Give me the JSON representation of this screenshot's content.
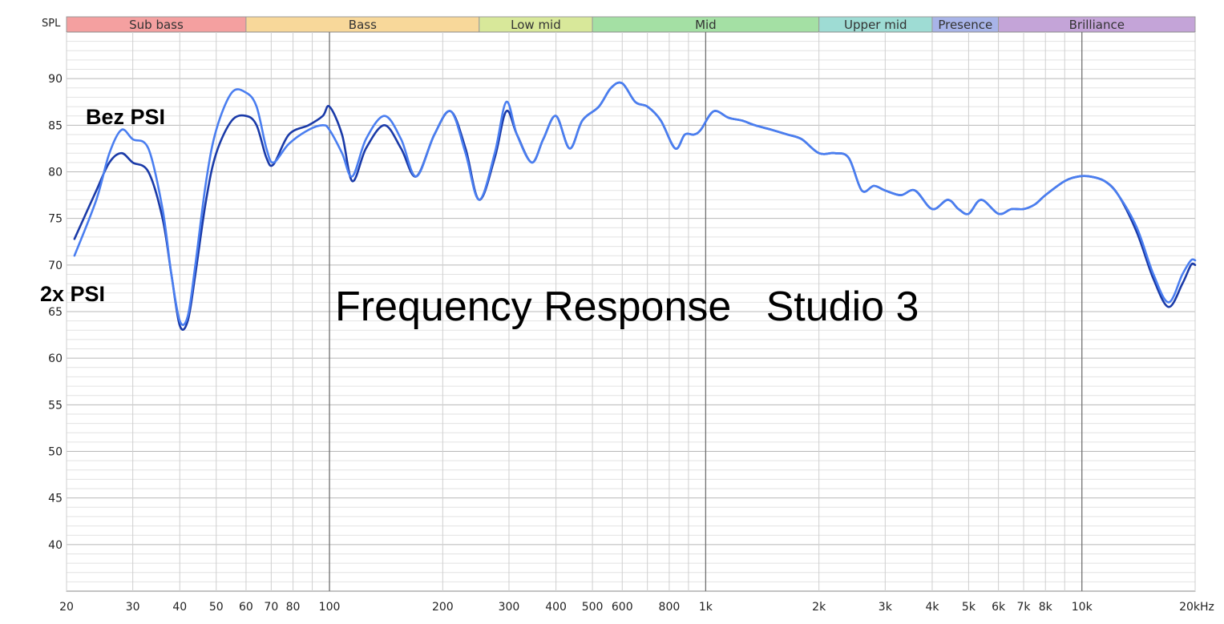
{
  "chart_data": {
    "type": "line",
    "title": "Frequency Response   Studio 3",
    "ylabel": "SPL",
    "xlabel": "",
    "x_scale": "log",
    "xlim": [
      20,
      20000
    ],
    "ylim": [
      35,
      95
    ],
    "grid": true,
    "y_ticks": [
      90,
      85,
      80,
      75,
      70,
      65,
      60,
      55,
      50,
      45,
      40
    ],
    "x_ticks": [
      {
        "value": 20,
        "label": "20"
      },
      {
        "value": 30,
        "label": "30"
      },
      {
        "value": 40,
        "label": "40"
      },
      {
        "value": 50,
        "label": "50"
      },
      {
        "value": 60,
        "label": "60"
      },
      {
        "value": 70,
        "label": "70"
      },
      {
        "value": 80,
        "label": "80"
      },
      {
        "value": 100,
        "label": "100"
      },
      {
        "value": 200,
        "label": "200"
      },
      {
        "value": 300,
        "label": "300"
      },
      {
        "value": 400,
        "label": "400"
      },
      {
        "value": 500,
        "label": "500"
      },
      {
        "value": 600,
        "label": "600"
      },
      {
        "value": 800,
        "label": "800"
      },
      {
        "value": 1000,
        "label": "1k"
      },
      {
        "value": 2000,
        "label": "2k"
      },
      {
        "value": 3000,
        "label": "3k"
      },
      {
        "value": 4000,
        "label": "4k"
      },
      {
        "value": 5000,
        "label": "5k"
      },
      {
        "value": 6000,
        "label": "6k"
      },
      {
        "value": 7000,
        "label": "7k"
      },
      {
        "value": 8000,
        "label": "8k"
      },
      {
        "value": 10000,
        "label": "10k"
      },
      {
        "value": 20000,
        "label": "20kHz"
      }
    ],
    "bands": [
      {
        "name": "Sub bass",
        "from": 20,
        "to": 60,
        "color": "#f4a0a0"
      },
      {
        "name": "Bass",
        "from": 60,
        "to": 250,
        "color": "#f8d89a"
      },
      {
        "name": "Low mid",
        "from": 250,
        "to": 500,
        "color": "#d8e89a"
      },
      {
        "name": "Mid",
        "from": 500,
        "to": 2000,
        "color": "#a4e0a4"
      },
      {
        "name": "Upper mid",
        "from": 2000,
        "to": 4000,
        "color": "#9edcd4"
      },
      {
        "name": "Presence",
        "from": 4000,
        "to": 6000,
        "color": "#a8b4e8"
      },
      {
        "name": "Brilliance",
        "from": 6000,
        "to": 20000,
        "color": "#c4a4d8"
      }
    ],
    "series": [
      {
        "name": "Bez PSI",
        "color": "#4a7ef0",
        "points": [
          [
            21,
            71
          ],
          [
            24,
            77
          ],
          [
            26,
            82
          ],
          [
            28,
            84.5
          ],
          [
            30,
            83.5
          ],
          [
            33,
            82.5
          ],
          [
            36,
            76
          ],
          [
            38,
            69
          ],
          [
            40,
            64
          ],
          [
            42,
            64.5
          ],
          [
            44,
            70
          ],
          [
            47,
            79
          ],
          [
            50,
            84.5
          ],
          [
            55,
            88.5
          ],
          [
            60,
            88.5
          ],
          [
            64,
            87
          ],
          [
            68,
            82.5
          ],
          [
            71,
            81
          ],
          [
            78,
            83
          ],
          [
            88,
            84.5
          ],
          [
            96,
            85
          ],
          [
            100,
            84.5
          ],
          [
            108,
            82
          ],
          [
            115,
            79.5
          ],
          [
            125,
            83.5
          ],
          [
            140,
            86
          ],
          [
            155,
            83.5
          ],
          [
            170,
            79.5
          ],
          [
            190,
            84
          ],
          [
            210,
            86.5
          ],
          [
            230,
            82
          ],
          [
            250,
            77
          ],
          [
            275,
            82
          ],
          [
            295,
            87.5
          ],
          [
            315,
            84
          ],
          [
            345,
            81
          ],
          [
            370,
            83.5
          ],
          [
            400,
            86
          ],
          [
            435,
            82.5
          ],
          [
            470,
            85.5
          ],
          [
            520,
            87
          ],
          [
            560,
            89
          ],
          [
            600,
            89.5
          ],
          [
            650,
            87.5
          ],
          [
            700,
            87
          ],
          [
            760,
            85.5
          ],
          [
            830,
            82.5
          ],
          [
            880,
            84
          ],
          [
            930,
            84
          ],
          [
            970,
            84.5
          ],
          [
            1050,
            86.5
          ],
          [
            1150,
            85.8
          ],
          [
            1250,
            85.5
          ],
          [
            1350,
            85
          ],
          [
            1500,
            84.5
          ],
          [
            1650,
            84
          ],
          [
            1800,
            83.5
          ],
          [
            2000,
            82
          ],
          [
            2200,
            82
          ],
          [
            2400,
            81.5
          ],
          [
            2600,
            78
          ],
          [
            2800,
            78.5
          ],
          [
            3000,
            78
          ],
          [
            3300,
            77.5
          ],
          [
            3600,
            78
          ],
          [
            4000,
            76
          ],
          [
            4400,
            77
          ],
          [
            4700,
            76
          ],
          [
            5000,
            75.5
          ],
          [
            5400,
            77
          ],
          [
            6000,
            75.5
          ],
          [
            6500,
            76
          ],
          [
            7000,
            76
          ],
          [
            7500,
            76.5
          ],
          [
            8000,
            77.5
          ],
          [
            9000,
            79
          ],
          [
            9800,
            79.5
          ],
          [
            10500,
            79.5
          ],
          [
            11500,
            79
          ],
          [
            12500,
            77.5
          ],
          [
            14000,
            74
          ],
          [
            15500,
            69
          ],
          [
            17000,
            66
          ],
          [
            18500,
            69
          ],
          [
            19500,
            70.5
          ],
          [
            20000,
            70.5
          ]
        ]
      },
      {
        "name": "2x PSI",
        "color": "#1a3aa8",
        "points": [
          [
            21,
            72.8
          ],
          [
            24,
            78
          ],
          [
            26,
            81
          ],
          [
            28,
            82
          ],
          [
            30,
            81
          ],
          [
            33,
            80
          ],
          [
            36,
            75
          ],
          [
            38,
            69
          ],
          [
            40,
            63.5
          ],
          [
            42,
            64
          ],
          [
            44,
            69
          ],
          [
            47,
            77
          ],
          [
            50,
            82
          ],
          [
            55,
            85.5
          ],
          [
            60,
            86
          ],
          [
            64,
            85
          ],
          [
            68,
            81.5
          ],
          [
            71,
            80.8
          ],
          [
            78,
            84
          ],
          [
            88,
            85
          ],
          [
            96,
            86
          ],
          [
            100,
            87
          ],
          [
            108,
            84
          ],
          [
            115,
            79
          ],
          [
            125,
            82.5
          ],
          [
            140,
            85
          ],
          [
            155,
            82.5
          ],
          [
            170,
            79.5
          ],
          [
            190,
            84
          ],
          [
            210,
            86.5
          ],
          [
            230,
            82.5
          ],
          [
            250,
            77
          ],
          [
            275,
            81.5
          ],
          [
            295,
            86.5
          ],
          [
            315,
            84
          ],
          [
            345,
            81
          ],
          [
            370,
            83.5
          ],
          [
            400,
            86
          ],
          [
            435,
            82.5
          ],
          [
            470,
            85.5
          ],
          [
            520,
            87
          ],
          [
            560,
            89
          ],
          [
            600,
            89.5
          ],
          [
            650,
            87.5
          ],
          [
            700,
            87
          ],
          [
            760,
            85.5
          ],
          [
            830,
            82.5
          ],
          [
            880,
            84
          ],
          [
            930,
            84
          ],
          [
            970,
            84.5
          ],
          [
            1050,
            86.5
          ],
          [
            1150,
            85.8
          ],
          [
            1250,
            85.5
          ],
          [
            1350,
            85
          ],
          [
            1500,
            84.5
          ],
          [
            1650,
            84
          ],
          [
            1800,
            83.5
          ],
          [
            2000,
            82
          ],
          [
            2200,
            82
          ],
          [
            2400,
            81.5
          ],
          [
            2600,
            78
          ],
          [
            2800,
            78.5
          ],
          [
            3000,
            78
          ],
          [
            3300,
            77.5
          ],
          [
            3600,
            78
          ],
          [
            4000,
            76
          ],
          [
            4400,
            77
          ],
          [
            4700,
            76
          ],
          [
            5000,
            75.5
          ],
          [
            5400,
            77
          ],
          [
            6000,
            75.5
          ],
          [
            6500,
            76
          ],
          [
            7000,
            76
          ],
          [
            7500,
            76.5
          ],
          [
            8000,
            77.5
          ],
          [
            9000,
            79
          ],
          [
            9800,
            79.5
          ],
          [
            10500,
            79.5
          ],
          [
            11500,
            79
          ],
          [
            12500,
            77.5
          ],
          [
            14000,
            73.5
          ],
          [
            15500,
            68.5
          ],
          [
            17000,
            65.5
          ],
          [
            18500,
            68
          ],
          [
            19500,
            70
          ],
          [
            20000,
            70
          ]
        ]
      }
    ]
  }
}
